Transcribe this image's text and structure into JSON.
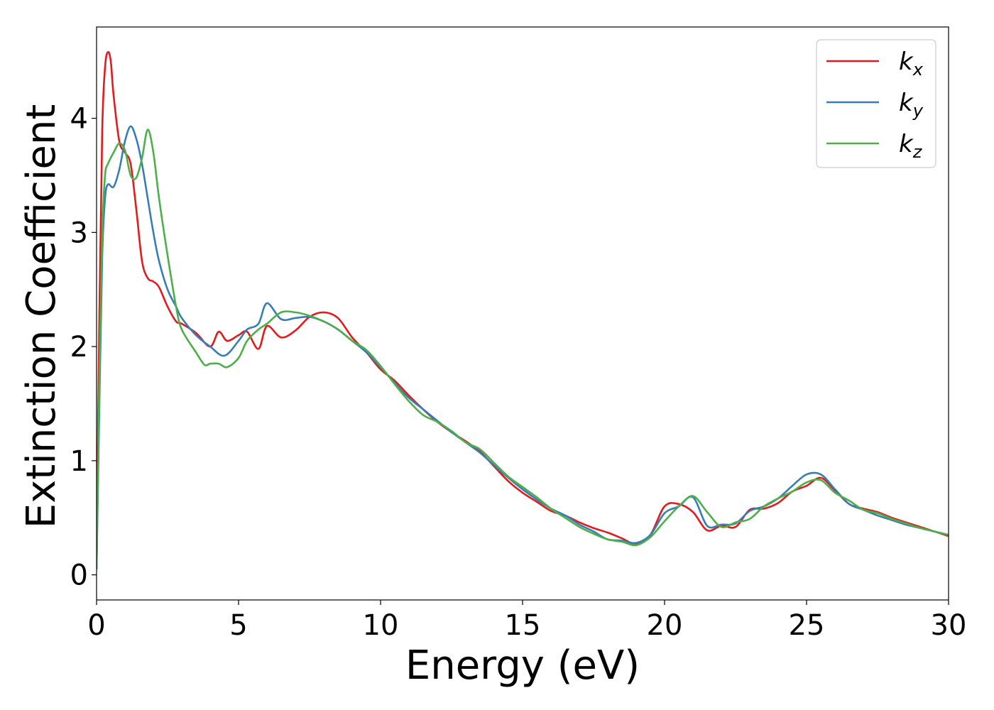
{
  "chart_data": {
    "type": "line",
    "xlabel": "Energy (eV)",
    "ylabel": "Extinction Coefficient",
    "xlim": [
      0,
      30
    ],
    "ylim": [
      -0.22,
      4.8
    ],
    "xticks": [
      0,
      5,
      10,
      15,
      20,
      25,
      30
    ],
    "yticks": [
      0,
      1,
      2,
      3,
      4
    ],
    "grid": false,
    "legend_position": "top-right",
    "series": [
      {
        "name": "k",
        "subscript": "x",
        "color": "#e41a1c",
        "x": [
          0,
          0.1,
          0.2,
          0.3,
          0.4,
          0.5,
          0.6,
          0.8,
          1.0,
          1.2,
          1.4,
          1.6,
          1.8,
          2.0,
          2.2,
          2.5,
          2.8,
          3.0,
          3.5,
          4.0,
          4.3,
          4.6,
          5.0,
          5.3,
          5.7,
          6.0,
          6.5,
          7.0,
          7.5,
          8.0,
          8.5,
          9.0,
          9.5,
          10.0,
          10.5,
          11.0,
          11.5,
          12.0,
          12.5,
          13.0,
          13.5,
          14.0,
          14.5,
          15.0,
          15.5,
          16.0,
          16.5,
          17.0,
          17.5,
          18.0,
          18.5,
          19.0,
          19.5,
          20.0,
          20.5,
          21.0,
          21.5,
          22.0,
          22.5,
          23.0,
          23.5,
          24.0,
          24.5,
          25.0,
          25.5,
          26.0,
          26.5,
          27.0,
          27.5,
          28.0,
          28.5,
          29.0,
          29.5,
          30.0
        ],
        "y": [
          0.05,
          2.3,
          3.9,
          4.45,
          4.58,
          4.5,
          4.2,
          3.8,
          3.7,
          3.6,
          3.2,
          2.75,
          2.6,
          2.57,
          2.52,
          2.35,
          2.22,
          2.2,
          2.12,
          2.0,
          2.13,
          2.05,
          2.1,
          2.13,
          1.98,
          2.18,
          2.08,
          2.14,
          2.26,
          2.3,
          2.25,
          2.08,
          1.95,
          1.8,
          1.7,
          1.57,
          1.45,
          1.34,
          1.25,
          1.17,
          1.08,
          0.95,
          0.82,
          0.72,
          0.64,
          0.56,
          0.52,
          0.46,
          0.41,
          0.37,
          0.32,
          0.27,
          0.35,
          0.6,
          0.62,
          0.55,
          0.39,
          0.43,
          0.42,
          0.57,
          0.58,
          0.63,
          0.73,
          0.78,
          0.85,
          0.74,
          0.62,
          0.58,
          0.55,
          0.5,
          0.46,
          0.42,
          0.38,
          0.34
        ]
      },
      {
        "name": "k",
        "subscript": "y",
        "color": "#377eb8",
        "x": [
          0,
          0.1,
          0.2,
          0.3,
          0.4,
          0.6,
          0.8,
          1.0,
          1.2,
          1.4,
          1.6,
          1.8,
          2.0,
          2.2,
          2.5,
          2.8,
          3.0,
          3.5,
          4.0,
          4.5,
          5.0,
          5.3,
          5.7,
          6.0,
          6.5,
          7.0,
          7.5,
          8.0,
          8.5,
          9.0,
          9.5,
          10.0,
          10.5,
          11.0,
          11.5,
          12.0,
          12.5,
          13.0,
          13.5,
          14.0,
          14.5,
          15.0,
          15.5,
          16.0,
          16.5,
          17.0,
          17.5,
          18.0,
          18.5,
          19.0,
          19.5,
          20.0,
          20.5,
          21.0,
          21.5,
          22.0,
          22.5,
          23.0,
          23.5,
          24.0,
          24.5,
          25.0,
          25.5,
          26.0,
          26.5,
          27.0,
          27.5,
          28.0,
          28.5,
          29.0,
          29.5,
          30.0
        ],
        "y": [
          0.05,
          1.5,
          2.8,
          3.3,
          3.42,
          3.4,
          3.55,
          3.8,
          3.93,
          3.82,
          3.6,
          3.3,
          3.0,
          2.75,
          2.5,
          2.35,
          2.25,
          2.1,
          2.0,
          1.92,
          2.05,
          2.15,
          2.2,
          2.38,
          2.24,
          2.25,
          2.26,
          2.22,
          2.15,
          2.05,
          1.95,
          1.82,
          1.68,
          1.55,
          1.45,
          1.35,
          1.25,
          1.16,
          1.07,
          0.96,
          0.85,
          0.75,
          0.66,
          0.58,
          0.52,
          0.44,
          0.38,
          0.31,
          0.3,
          0.28,
          0.35,
          0.54,
          0.6,
          0.68,
          0.43,
          0.44,
          0.45,
          0.56,
          0.6,
          0.67,
          0.78,
          0.88,
          0.88,
          0.75,
          0.62,
          0.57,
          0.52,
          0.48,
          0.44,
          0.41,
          0.38,
          0.35
        ]
      },
      {
        "name": "k",
        "subscript": "z",
        "color": "#4daf4a",
        "x": [
          0,
          0.1,
          0.2,
          0.3,
          0.4,
          0.6,
          0.8,
          1.0,
          1.2,
          1.4,
          1.6,
          1.8,
          2.0,
          2.2,
          2.5,
          2.8,
          3.0,
          3.5,
          3.8,
          4.0,
          4.3,
          4.6,
          5.0,
          5.3,
          5.7,
          6.0,
          6.5,
          7.0,
          7.5,
          8.0,
          8.5,
          9.0,
          9.5,
          10.0,
          10.5,
          11.0,
          11.5,
          12.0,
          12.5,
          13.0,
          13.5,
          14.0,
          14.5,
          15.0,
          15.5,
          16.0,
          16.5,
          17.0,
          17.5,
          18.0,
          18.5,
          19.0,
          19.5,
          20.0,
          20.5,
          21.0,
          21.5,
          22.0,
          22.5,
          23.0,
          23.5,
          24.0,
          24.5,
          25.0,
          25.5,
          26.0,
          26.5,
          27.0,
          27.5,
          28.0,
          28.5,
          29.0,
          29.5,
          30.0
        ],
        "y": [
          0.05,
          1.7,
          3.0,
          3.5,
          3.6,
          3.7,
          3.78,
          3.72,
          3.5,
          3.48,
          3.65,
          3.9,
          3.7,
          3.3,
          2.8,
          2.35,
          2.15,
          1.95,
          1.84,
          1.85,
          1.85,
          1.82,
          1.9,
          2.05,
          2.15,
          2.2,
          2.3,
          2.3,
          2.27,
          2.22,
          2.15,
          2.05,
          1.97,
          1.83,
          1.67,
          1.52,
          1.4,
          1.34,
          1.26,
          1.16,
          1.1,
          0.98,
          0.86,
          0.77,
          0.68,
          0.58,
          0.5,
          0.42,
          0.36,
          0.31,
          0.29,
          0.26,
          0.33,
          0.47,
          0.6,
          0.69,
          0.55,
          0.42,
          0.46,
          0.49,
          0.6,
          0.67,
          0.73,
          0.81,
          0.83,
          0.72,
          0.65,
          0.57,
          0.54,
          0.49,
          0.45,
          0.41,
          0.38,
          0.35
        ]
      }
    ]
  }
}
